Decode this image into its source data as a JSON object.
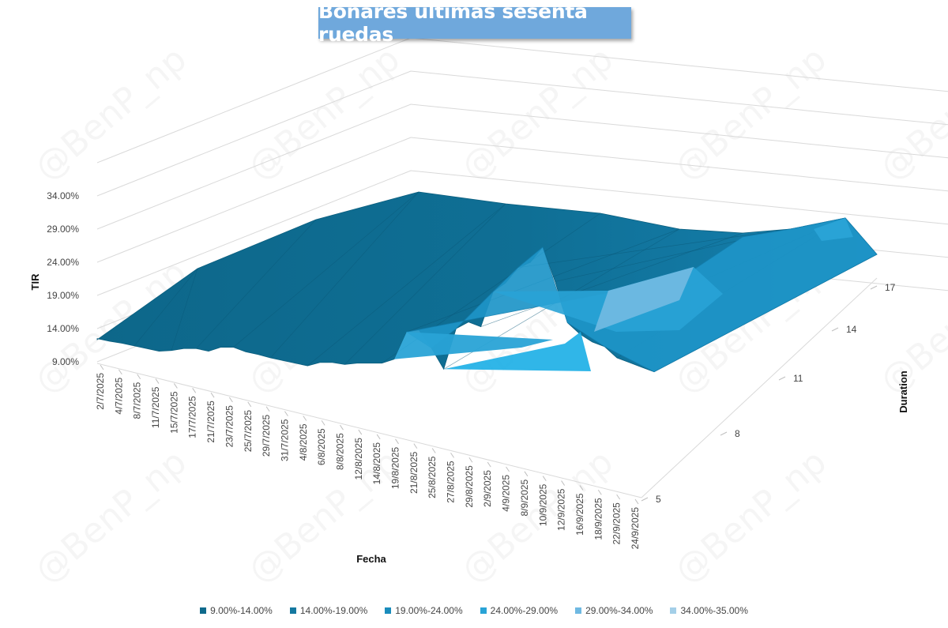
{
  "chart_data": {
    "type": "surface",
    "title": "Bonares últimas sesenta ruedas",
    "zlabel": "TIR",
    "xlabel": "Fecha",
    "ylabel": "Duration",
    "z_ticks": [
      "9.00%",
      "14.00%",
      "19.00%",
      "24.00%",
      "29.00%",
      "34.00%"
    ],
    "z_range": [
      9,
      35
    ],
    "x_ticks": [
      "2/7/2025",
      "4/7/2025",
      "8/7/2025",
      "11/7/2025",
      "15/7/2025",
      "17/7/2025",
      "21/7/2025",
      "23/7/2025",
      "25/7/2025",
      "29/7/2025",
      "31/7/2025",
      "4/8/2025",
      "6/8/2025",
      "8/8/2025",
      "12/8/2025",
      "14/8/2025",
      "19/8/2025",
      "21/8/2025",
      "25/8/2025",
      "27/8/2025",
      "29/8/2025",
      "2/9/2025",
      "4/9/2025",
      "8/9/2025",
      "10/9/2025",
      "12/9/2025",
      "16/9/2025",
      "18/9/2025",
      "22/9/2025",
      "24/9/2025"
    ],
    "y_ticks": [
      "5",
      "8",
      "11",
      "14",
      "17"
    ],
    "legend": [
      {
        "label": "9.00%-14.00%",
        "color": "#0f6a8c"
      },
      {
        "label": "14.00%-19.00%",
        "color": "#1478a0"
      },
      {
        "label": "19.00%-24.00%",
        "color": "#1a8cbc"
      },
      {
        "label": "24.00%-29.00%",
        "color": "#29a3d6"
      },
      {
        "label": "29.00%-34.00%",
        "color": "#6fb9e2"
      },
      {
        "label": "34.00%-35.00%",
        "color": "#a4cfe8"
      }
    ],
    "front_profile_tir": [
      12.5,
      12.3,
      12.2,
      12.0,
      11.8,
      11.6,
      11.9,
      12.4,
      12.6,
      12.4,
      13.2,
      13.4,
      12.9,
      12.7,
      12.4,
      12.2,
      12.0,
      11.8,
      12.5,
      12.7,
      12.6,
      13.0,
      13.2,
      13.4,
      14.2,
      18.5,
      19.0,
      16.5,
      13.5,
      19.8,
      21.0,
      20.5,
      26.0,
      27.5,
      30.0,
      31.0,
      33.5,
      28.5,
      22.5,
      21.0,
      20.0,
      19.5,
      18.0,
      17.5,
      17.0,
      16.5
    ],
    "peak_tir": 35.0,
    "grid": true,
    "legend_position": "bottom",
    "watermark": "@BenP_np"
  }
}
